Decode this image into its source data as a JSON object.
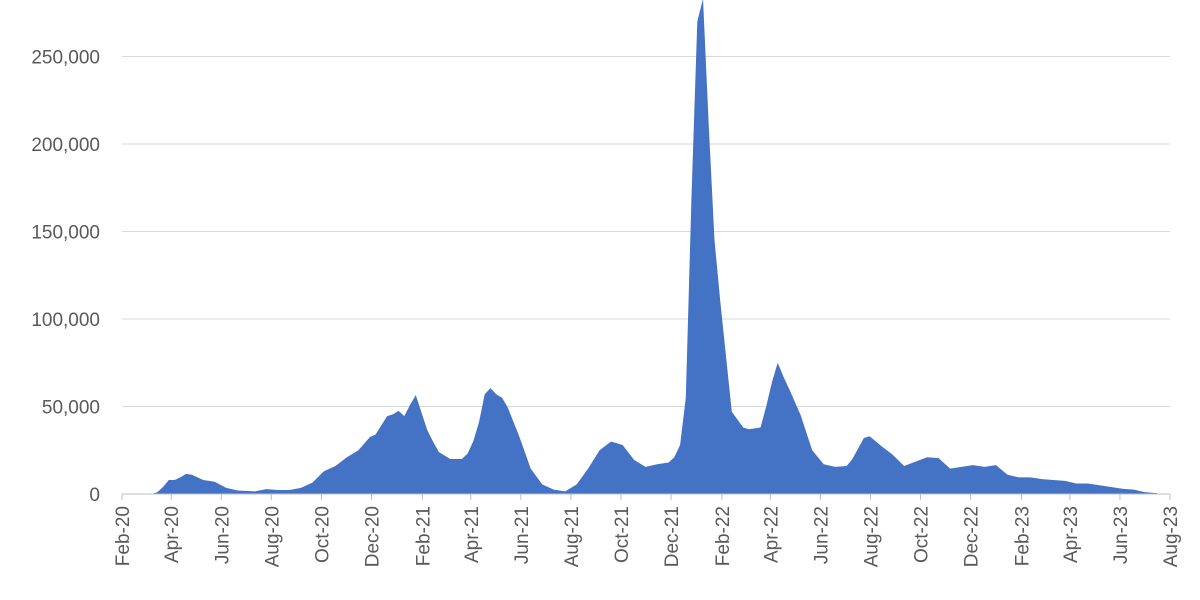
{
  "chart_data": {
    "type": "area",
    "title": "",
    "xlabel": "",
    "ylabel": "",
    "grid": true,
    "legend": "none",
    "color": "#4472c4",
    "xlim": [
      "2020-02-01",
      "2023-08-01"
    ],
    "ylim": [
      0,
      280000
    ],
    "y_ticks": [
      0,
      50000,
      100000,
      150000,
      200000,
      250000
    ],
    "y_tick_labels": [
      "0",
      "50,000",
      "100,000",
      "150,000",
      "200,000",
      "250,000"
    ],
    "x_ticks": [
      "2020-02-01",
      "2020-04-01",
      "2020-06-01",
      "2020-08-01",
      "2020-10-01",
      "2020-12-01",
      "2021-02-01",
      "2021-04-01",
      "2021-06-01",
      "2021-08-01",
      "2021-10-01",
      "2021-12-01",
      "2022-02-01",
      "2022-04-01",
      "2022-06-01",
      "2022-08-01",
      "2022-10-01",
      "2022-12-01",
      "2023-02-01",
      "2023-04-01",
      "2023-06-01",
      "2023-08-01"
    ],
    "x_tick_labels": [
      "Feb-20",
      "Apr-20",
      "Jun-20",
      "Aug-20",
      "Oct-20",
      "Dec-20",
      "Feb-21",
      "Apr-21",
      "Jun-21",
      "Aug-21",
      "Oct-21",
      "Dec-21",
      "Feb-22",
      "Apr-22",
      "Jun-22",
      "Aug-22",
      "Oct-22",
      "Dec-22",
      "Feb-23",
      "Apr-23",
      "Jun-23",
      "Aug-23"
    ],
    "series": [
      {
        "x": [
          "2020-03-08",
          "2020-03-15",
          "2020-03-22",
          "2020-03-29",
          "2020-04-05",
          "2020-04-12",
          "2020-04-19",
          "2020-04-26",
          "2020-05-10",
          "2020-05-24",
          "2020-06-07",
          "2020-06-21",
          "2020-07-12",
          "2020-07-26",
          "2020-08-09",
          "2020-08-23",
          "2020-09-06",
          "2020-09-20",
          "2020-10-04",
          "2020-10-18",
          "2020-11-01",
          "2020-11-15",
          "2020-11-29",
          "2020-12-06",
          "2020-12-20",
          "2020-12-27",
          "2021-01-03",
          "2021-01-10",
          "2021-01-17",
          "2021-01-24",
          "2021-01-31",
          "2021-02-07",
          "2021-02-14",
          "2021-02-21",
          "2021-03-07",
          "2021-03-21",
          "2021-03-28",
          "2021-04-04",
          "2021-04-11",
          "2021-04-18",
          "2021-04-25",
          "2021-05-02",
          "2021-05-09",
          "2021-05-16",
          "2021-05-30",
          "2021-06-13",
          "2021-06-27",
          "2021-07-11",
          "2021-07-25",
          "2021-08-08",
          "2021-08-22",
          "2021-09-05",
          "2021-09-19",
          "2021-10-03",
          "2021-10-17",
          "2021-10-31",
          "2021-11-14",
          "2021-11-28",
          "2021-12-05",
          "2021-12-12",
          "2021-12-19",
          "2021-12-26",
          "2022-01-02",
          "2022-01-09",
          "2022-01-16",
          "2022-01-23",
          "2022-01-30",
          "2022-02-13",
          "2022-02-27",
          "2022-03-06",
          "2022-03-20",
          "2022-03-27",
          "2022-04-03",
          "2022-04-10",
          "2022-04-17",
          "2022-04-24",
          "2022-05-08",
          "2022-05-22",
          "2022-06-05",
          "2022-06-19",
          "2022-07-03",
          "2022-07-10",
          "2022-07-17",
          "2022-07-24",
          "2022-07-31",
          "2022-08-14",
          "2022-08-28",
          "2022-09-11",
          "2022-09-25",
          "2022-10-09",
          "2022-10-23",
          "2022-11-06",
          "2022-11-20",
          "2022-12-04",
          "2022-12-18",
          "2023-01-01",
          "2023-01-15",
          "2023-01-29",
          "2023-02-12",
          "2023-02-26",
          "2023-03-12",
          "2023-03-26",
          "2023-04-09",
          "2023-04-23",
          "2023-05-07",
          "2023-05-21",
          "2023-06-04",
          "2023-06-18",
          "2023-07-02",
          "2023-07-16"
        ],
        "values": [
          0,
          1000,
          4000,
          8000,
          8000,
          9500,
          11500,
          11000,
          8000,
          7000,
          3500,
          2000,
          1500,
          2800,
          2300,
          2300,
          3500,
          6500,
          13000,
          16000,
          21000,
          25000,
          32500,
          34000,
          44500,
          45500,
          47500,
          44500,
          51000,
          56500,
          46500,
          36500,
          30000,
          24000,
          20000,
          20000,
          23000,
          30000,
          41000,
          57000,
          60500,
          57000,
          55000,
          49500,
          33000,
          14500,
          5500,
          2500,
          1500,
          5500,
          14500,
          25000,
          30000,
          28000,
          19500,
          15500,
          17000,
          18000,
          21000,
          28000,
          55000,
          170000,
          270000,
          283000,
          210000,
          145000,
          110000,
          47000,
          38000,
          37000,
          38000,
          50000,
          64000,
          75000,
          67000,
          60000,
          45000,
          25000,
          17000,
          15500,
          16000,
          20000,
          26000,
          32000,
          33000,
          27500,
          22500,
          16000,
          18500,
          21000,
          20500,
          14500,
          15500,
          16500,
          15500,
          16500,
          11000,
          9500,
          9500,
          8500,
          8000,
          7500,
          6000,
          6000,
          5000,
          4000,
          3000,
          2500,
          1000,
          500
        ]
      }
    ]
  }
}
